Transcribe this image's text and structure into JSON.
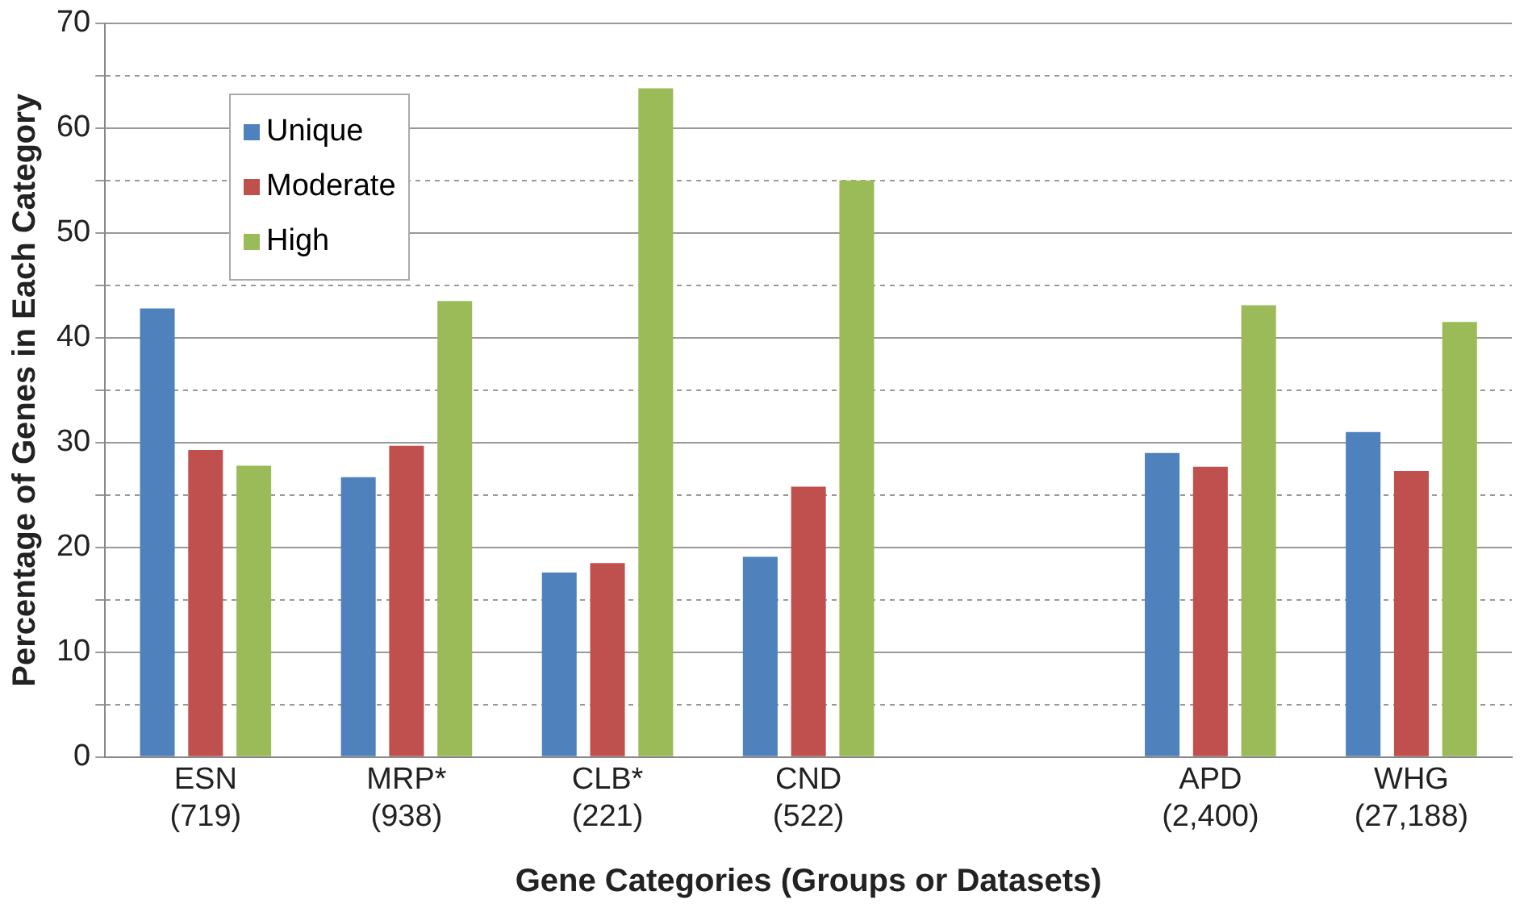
{
  "chart_data": {
    "type": "bar",
    "xlabel": "Gene Categories (Groups or Datasets)",
    "ylabel": "Percentage of Genes in Each Category",
    "categories": [
      "ESN\n(719)",
      "MRP*\n(938)",
      "CLB*\n(221)",
      "CND\n(522)",
      null,
      "APD\n(2,400)",
      "WHG\n(27,188)"
    ],
    "series": [
      {
        "name": "Unique",
        "color": "#4f81bd",
        "values": [
          42.8,
          26.7,
          17.6,
          19.1,
          null,
          29.0,
          31.0
        ]
      },
      {
        "name": "Moderate",
        "color": "#c0504d",
        "values": [
          29.3,
          29.7,
          18.5,
          25.8,
          null,
          27.7,
          27.3
        ]
      },
      {
        "name": "High",
        "color": "#9bbb59",
        "values": [
          27.8,
          43.5,
          63.8,
          55.0,
          null,
          43.1,
          41.5
        ]
      }
    ],
    "ylim": [
      0,
      70
    ],
    "yticks": [
      0,
      {
        "value": 5,
        "label": null
      },
      10,
      {
        "value": 15,
        "label": null
      },
      20,
      {
        "value": 25,
        "label": null
      },
      30,
      {
        "value": 35,
        "label": null
      },
      40,
      {
        "value": 45,
        "label": null
      },
      50,
      {
        "value": 55,
        "label": null
      },
      60,
      {
        "value": 65,
        "label": null
      },
      70
    ],
    "grid": "y",
    "legend": "top left"
  }
}
